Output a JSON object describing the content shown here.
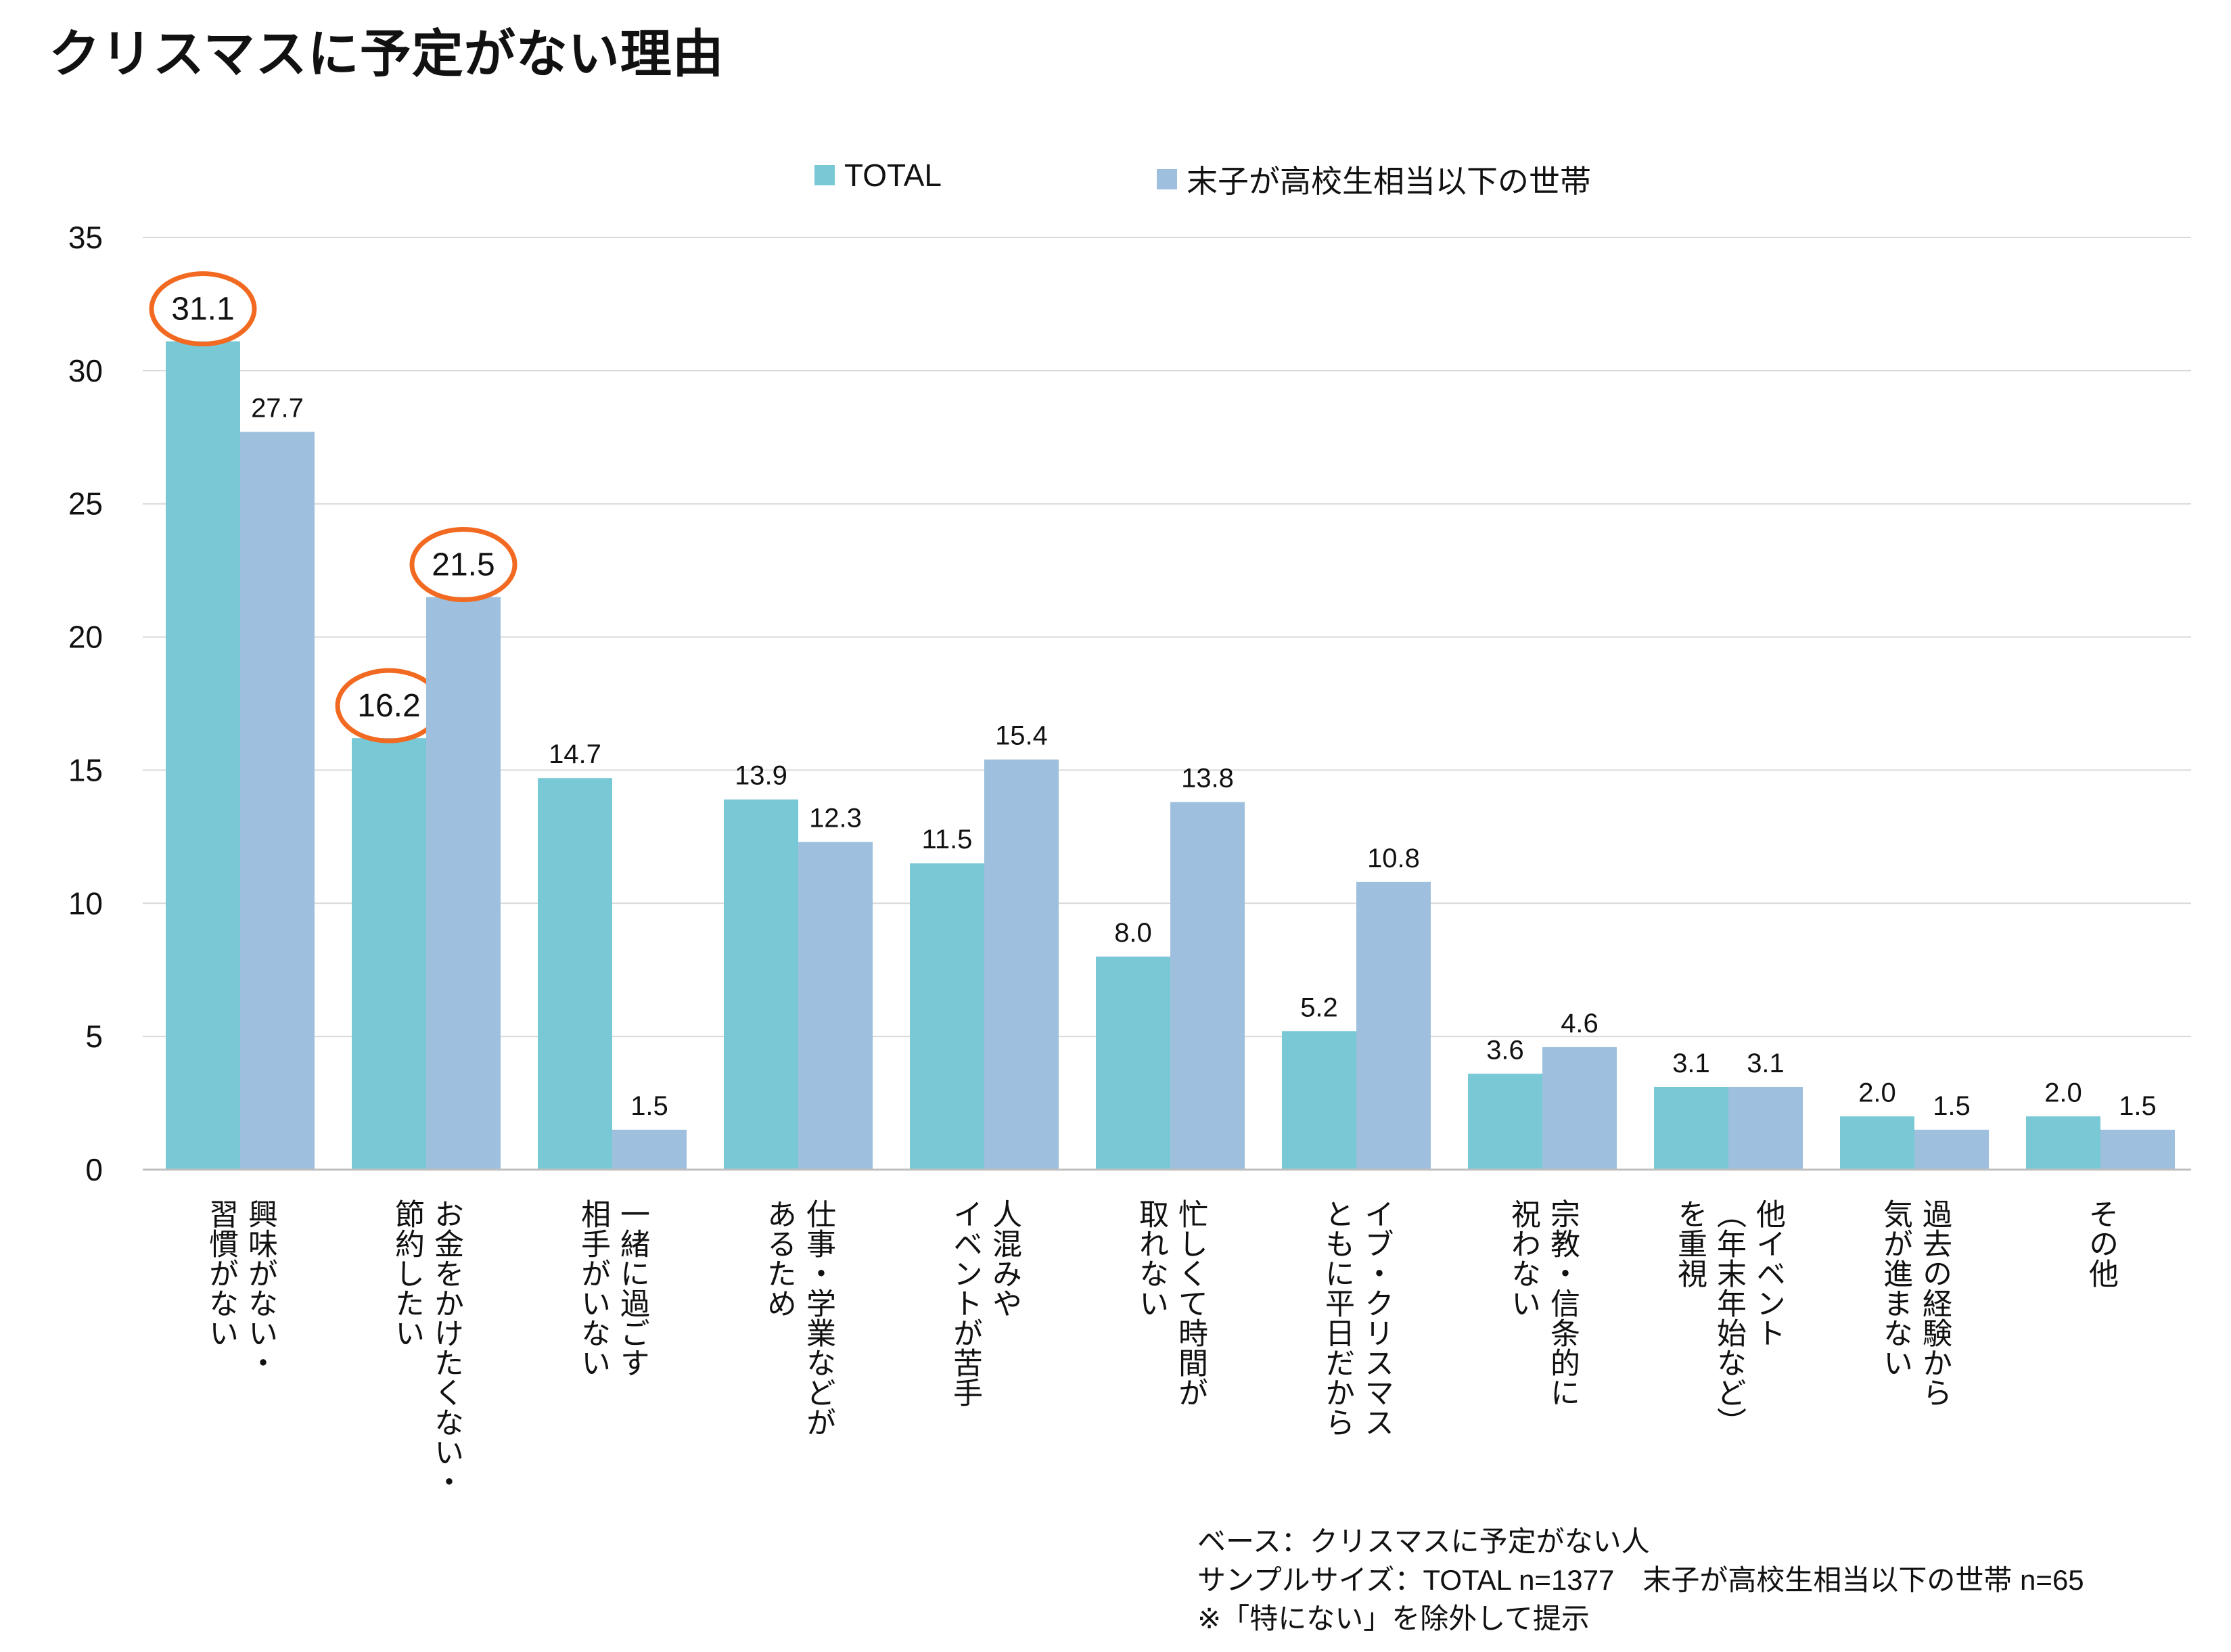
{
  "title": "クリスマスに予定がない理由",
  "chart_data": {
    "type": "bar",
    "title": "クリスマスに予定がない理由",
    "xlabel": "",
    "ylabel": "",
    "ylim": [
      0,
      35
    ],
    "yticks": [
      0,
      5,
      10,
      15,
      20,
      25,
      30,
      35
    ],
    "grid": true,
    "legend_position": "top-center",
    "categories": [
      [
        "興味がない・",
        "習慣がない"
      ],
      [
        "お金をかけたくない・",
        "節約したい"
      ],
      [
        "一緒に過ごす",
        "相手がいない"
      ],
      [
        "仕事・学業などが",
        "あるため"
      ],
      [
        "人混みや",
        "イベントが苦手"
      ],
      [
        "忙しくて時間が",
        "取れない"
      ],
      [
        "イブ・クリスマス",
        "ともに平日だから"
      ],
      [
        "宗教・信条的に",
        "祝わない"
      ],
      [
        "他イベント",
        "（年末年始など）",
        "を重視"
      ],
      [
        "過去の経験から",
        "気が進まない"
      ],
      [
        "その他"
      ]
    ],
    "series": [
      {
        "name": "TOTAL",
        "color": "#78c8d6",
        "values": [
          31.1,
          16.2,
          14.7,
          13.9,
          11.5,
          8.0,
          5.2,
          3.6,
          3.1,
          2.0,
          2.0
        ]
      },
      {
        "name": "末子が高校生相当以下の世帯",
        "color": "#9ebfdd",
        "values": [
          27.7,
          21.5,
          1.5,
          12.3,
          15.4,
          13.8,
          10.8,
          4.6,
          3.1,
          1.5,
          1.5
        ]
      }
    ],
    "highlighted": [
      {
        "series": 0,
        "index": 0
      },
      {
        "series": 0,
        "index": 1
      },
      {
        "series": 1,
        "index": 1
      }
    ],
    "highlight_color": "#f26a21"
  },
  "footnotes": [
    "ベース：クリスマスに予定がない人",
    "サンプルサイズ：TOTAL n=1377　末子が高校生相当以下の世帯 n=65",
    "※「特にない」を除外して提示"
  ]
}
